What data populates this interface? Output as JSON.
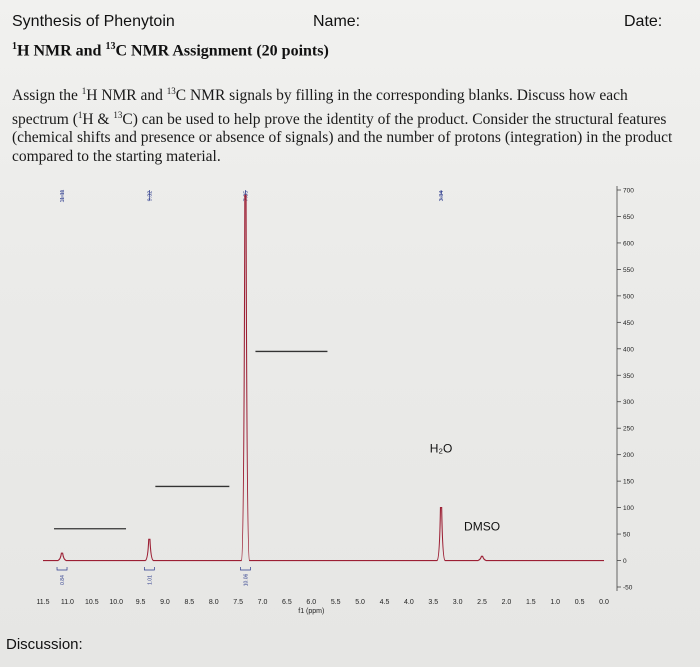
{
  "header": {
    "title": "Synthesis of Phenytoin",
    "name_label": "Name:",
    "date_label": "Date:"
  },
  "subtitle": {
    "h_sup": "1",
    "h_part": "H NMR and ",
    "c_sup": "13",
    "c_part": "C NMR Assignment (20 points)"
  },
  "instructions": {
    "p1": "Assign the ",
    "s1": "1",
    "p2": "H NMR and ",
    "s2": "13",
    "p3": "C NMR signals by filling in the corresponding blanks.  Discuss how each spectrum (",
    "s3": "1",
    "p4": "H & ",
    "s4": "13",
    "p5": "C) can be used to help prove the identity of the product.  Consider the structural features (chemical shifts and presence or absence of signals) and the number of protons (integration) in the product compared to the starting material."
  },
  "discussion_label": "Discussion:",
  "colors": {
    "spectrum_line": "#9c1f34",
    "peak_label": "#2b3a8c",
    "blank_line": "#333333",
    "text": "#111111"
  },
  "chart_data": {
    "type": "line",
    "xlabel": "f1 (ppm)",
    "ylabel": "",
    "x_reversed": true,
    "xlim": [
      11.5,
      0.0
    ],
    "ylim": [
      -50,
      700
    ],
    "x_ticks": [
      "11.5",
      "11.0",
      "10.5",
      "10.0",
      "9.5",
      "9.0",
      "8.5",
      "8.0",
      "7.5",
      "7.0",
      "6.5",
      "6.0",
      "5.5",
      "5.0",
      "4.5",
      "4.0",
      "3.5",
      "3.0",
      "2.5",
      "2.0",
      "1.5",
      "1.0",
      "0.5",
      "0.0"
    ],
    "y_ticks": [
      "-50",
      "0",
      "50",
      "100",
      "150",
      "200",
      "250",
      "300",
      "350",
      "400",
      "450",
      "500",
      "550",
      "600",
      "650",
      "700"
    ],
    "peaks": [
      {
        "ppm": 11.11,
        "height": 14,
        "label": "11.11",
        "integral": "0.84"
      },
      {
        "ppm": 9.32,
        "height": 40,
        "label": "9.32",
        "integral": "1.01"
      },
      {
        "ppm": 7.35,
        "height": 690,
        "label": "7.35",
        "integral": "10.06"
      },
      {
        "ppm": 3.34,
        "height": 100,
        "label": "3.34",
        "integral": ""
      },
      {
        "ppm": 2.5,
        "height": 8,
        "label": "",
        "integral": ""
      }
    ],
    "annotations": [
      {
        "text": "H₂O",
        "ppm": 3.34
      },
      {
        "text": "DMSO",
        "ppm": 2.5
      }
    ]
  }
}
